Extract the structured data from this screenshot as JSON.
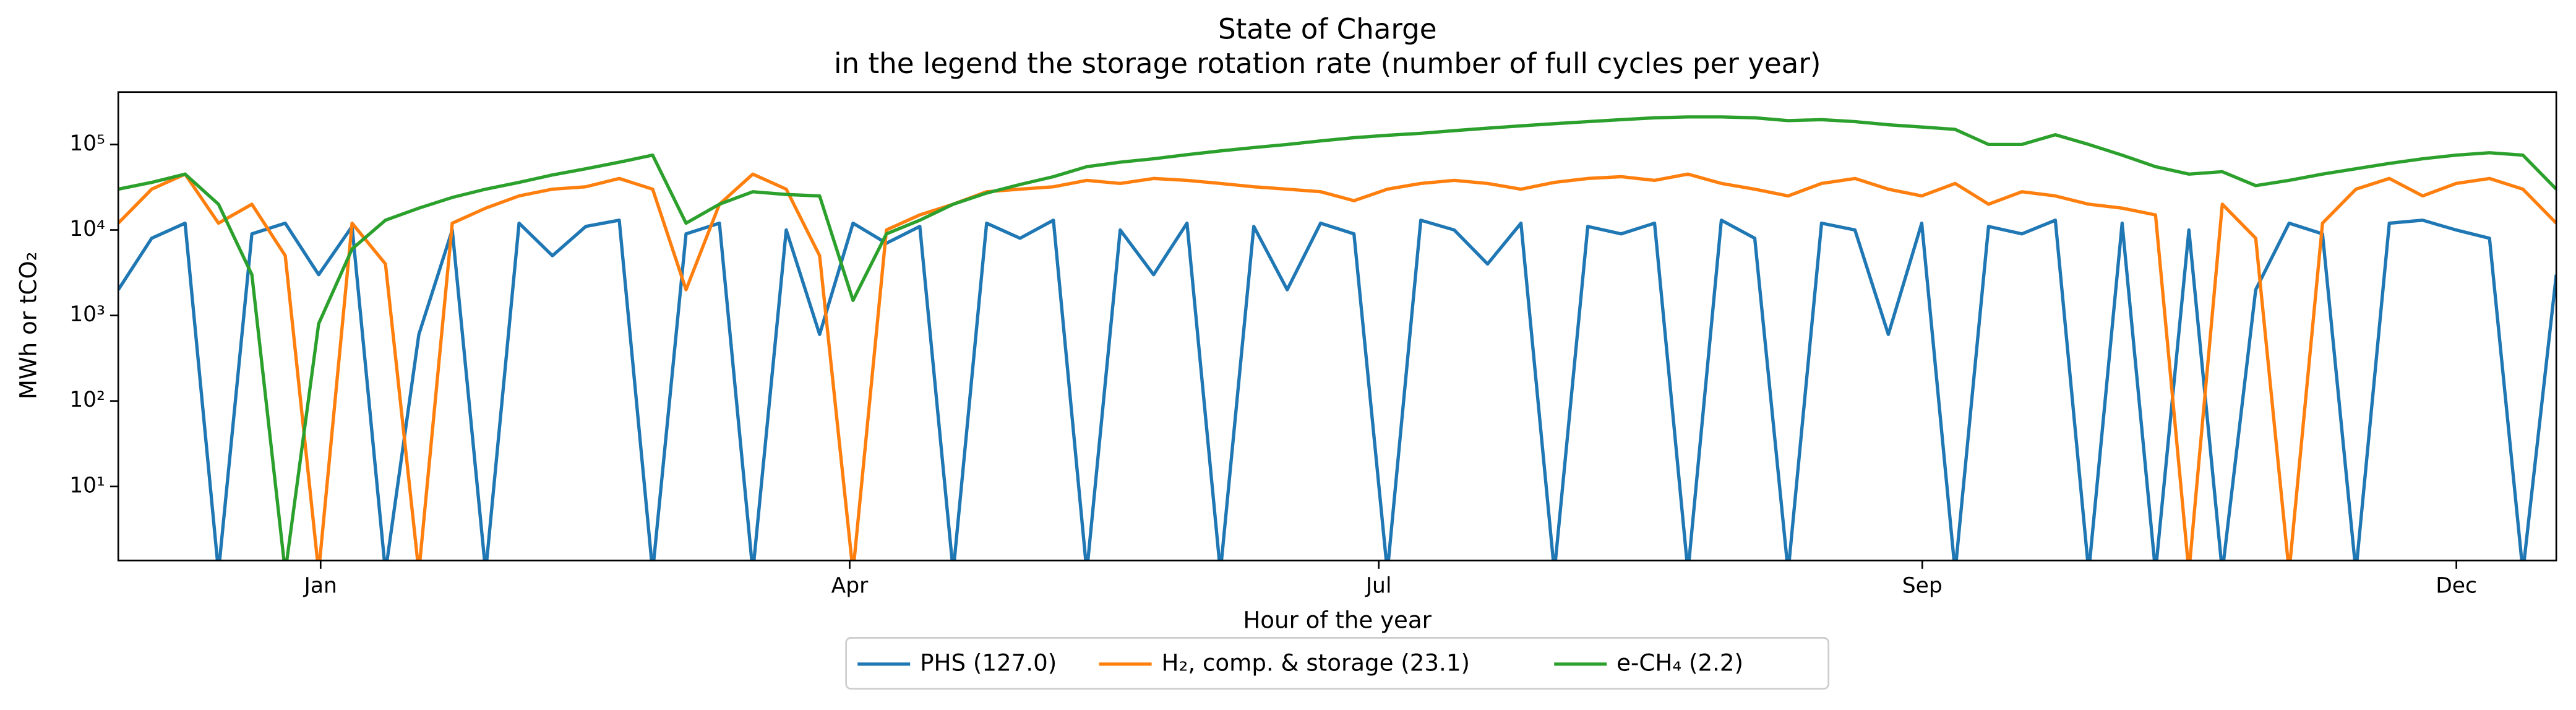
{
  "chart_data": {
    "type": "line",
    "title": "State of Charge",
    "subtitle": "in the legend the storage rotation rate (number of full cycles per year)",
    "x_label": "Hour of the year",
    "y_label": "MWh or tCO₂",
    "log_y": true,
    "legend": "lower center",
    "x": [
      0,
      120,
      240,
      360,
      480,
      600,
      720,
      840,
      960,
      1080,
      1200,
      1320,
      1440,
      1560,
      1680,
      1800,
      1920,
      2040,
      2160,
      2280,
      2400,
      2520,
      2640,
      2760,
      2880,
      3000,
      3120,
      3240,
      3360,
      3480,
      3600,
      3720,
      3840,
      3960,
      4080,
      4200,
      4320,
      4440,
      4560,
      4680,
      4800,
      4920,
      5040,
      5160,
      5280,
      5400,
      5520,
      5640,
      5760,
      5880,
      6000,
      6120,
      6240,
      6360,
      6480,
      6600,
      6720,
      6840,
      6960,
      7080,
      7200,
      7320,
      7440,
      7560,
      7680,
      7800,
      7920,
      8040,
      8160,
      8280,
      8400,
      8520,
      8640,
      8760
    ],
    "xlim": [
      0,
      8760
    ],
    "xticks": [
      {
        "value": 727,
        "label": "Jan"
      },
      {
        "value": 2628,
        "label": "Apr"
      },
      {
        "value": 4529,
        "label": "Jul"
      },
      {
        "value": 6482,
        "label": "Sep"
      },
      {
        "value": 8401,
        "label": "Dec"
      }
    ],
    "ylim": [
      1.36,
      410000
    ],
    "yticks": [
      {
        "value": 10,
        "label": "10¹"
      },
      {
        "value": 100,
        "label": "10²"
      },
      {
        "value": 1000,
        "label": "10³"
      },
      {
        "value": 10000,
        "label": "10⁴"
      },
      {
        "value": 100000,
        "label": "10⁵"
      }
    ],
    "series": [
      {
        "name": "PHS (127.0)",
        "color": "#1f77b4",
        "values": [
          2000,
          8000,
          12000,
          1,
          9000,
          12000,
          3000,
          11000,
          1,
          600,
          10000,
          1,
          12000,
          5000,
          11000,
          13000,
          1,
          9000,
          12000,
          1,
          10000,
          600,
          12000,
          7000,
          11000,
          1,
          12000,
          8000,
          13000,
          1,
          10000,
          3000,
          12000,
          1,
          11000,
          2000,
          12000,
          9000,
          1,
          13000,
          10000,
          4000,
          12000,
          1,
          11000,
          9000,
          12000,
          1,
          13000,
          8000,
          1,
          12000,
          10000,
          600,
          12000,
          1,
          11000,
          9000,
          13000,
          1,
          12000,
          1,
          10000,
          1,
          2000,
          12000,
          9000,
          1,
          12000,
          13000,
          10000,
          8000,
          1,
          3000
        ]
      },
      {
        "name": "H₂, comp. & storage (23.1)",
        "color": "#ff7f0e",
        "values": [
          12000,
          30000,
          45000,
          12000,
          20000,
          5000,
          1,
          12000,
          4000,
          1,
          12000,
          18000,
          25000,
          30000,
          32000,
          40000,
          30000,
          2000,
          20000,
          45000,
          30000,
          5000,
          1,
          10000,
          15000,
          20000,
          28000,
          30000,
          32000,
          38000,
          35000,
          40000,
          38000,
          35000,
          32000,
          30000,
          28000,
          22000,
          30000,
          35000,
          38000,
          35000,
          30000,
          36000,
          40000,
          42000,
          38000,
          45000,
          35000,
          30000,
          25000,
          35000,
          40000,
          30000,
          25000,
          35000,
          20000,
          28000,
          25000,
          20000,
          18000,
          15000,
          1,
          20000,
          8000,
          1,
          12000,
          30000,
          40000,
          25000,
          35000,
          40000,
          30000,
          12000
        ]
      },
      {
        "name": "e-CH₄ (2.2)",
        "color": "#2ca02c",
        "values": [
          30000,
          36000,
          45000,
          20000,
          3000,
          1,
          800,
          6000,
          13000,
          18000,
          24000,
          30000,
          36000,
          44000,
          52000,
          62000,
          75000,
          12000,
          20000,
          28000,
          26000,
          25000,
          1500,
          9000,
          13000,
          20000,
          27000,
          34000,
          42000,
          55000,
          62000,
          68000,
          76000,
          84000,
          92000,
          100000,
          110000,
          120000,
          128000,
          135000,
          145000,
          155000,
          165000,
          175000,
          185000,
          195000,
          205000,
          210000,
          210000,
          205000,
          190000,
          195000,
          185000,
          170000,
          160000,
          150000,
          100000,
          100000,
          130000,
          100000,
          75000,
          55000,
          45000,
          48000,
          33000,
          38000,
          45000,
          52000,
          60000,
          68000,
          75000,
          80000,
          75000,
          30000
        ]
      }
    ]
  }
}
